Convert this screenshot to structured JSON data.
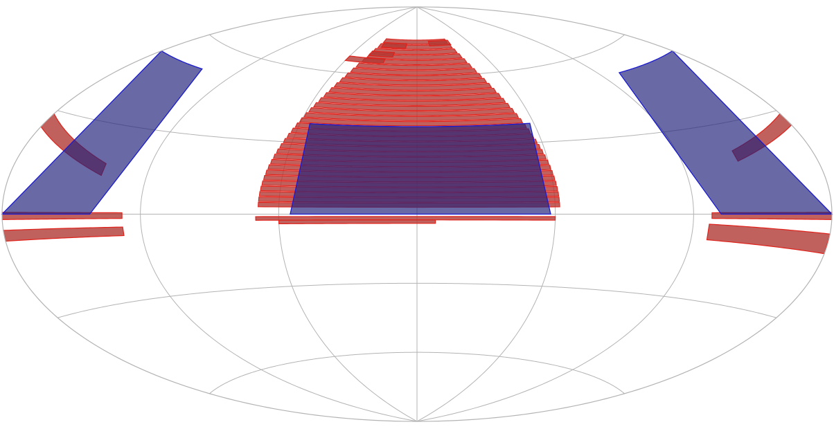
{
  "map": {
    "projection": "aitoff",
    "graticule": {
      "longitude_step_deg": 60,
      "latitude_step_deg": 30
    },
    "colors": {
      "background": "#ffffff",
      "grid": "#b3b3b3",
      "red_fill": "#b03a35",
      "red_stroke": "#e0221b",
      "blue_fill": "#22227a",
      "blue_stroke": "#1a1ad0"
    },
    "footprint_sets": [
      {
        "id": "survey-strips",
        "color": "red",
        "strips": [
          {
            "lon": [
              -180,
              -128
            ],
            "lat": [
              -7.5,
              -4.5
            ]
          },
          {
            "lon": [
              -180,
              -128
            ],
            "lat": [
              0.5,
              -1.5
            ]
          },
          {
            "lon": [
              -180,
              -140
            ],
            "lat": [
              23,
              19
            ],
            "tilt": -12
          },
          {
            "lon": [
              127,
              180
            ],
            "lat": [
              -4.5,
              -10
            ],
            "tilt": -2
          },
          {
            "lon": [
              128,
              180
            ],
            "lat": [
              0.5,
              -1.5
            ]
          },
          {
            "lon": [
              145,
              180
            ],
            "lat": [
              21.5,
              25
            ],
            "tilt": 8
          },
          {
            "lon": [
              -70,
              60
            ],
            "lat": [
              -1,
              -2.5
            ]
          },
          {
            "lon": [
              -60,
              8
            ],
            "lat": [
              -2.5,
              -4
            ]
          }
        ],
        "band_stack": {
          "lon_min": -69,
          "lon_max": 62,
          "lat_min": 3,
          "lat_max": 76,
          "count": 33
        },
        "outlier_strips": [
          {
            "lon": [
              -60,
              -28
            ],
            "lat": [
              65,
              67
            ]
          },
          {
            "lon": [
              -44,
              -22
            ],
            "lat": [
              68,
              70
            ]
          },
          {
            "lon": [
              -38,
              -12
            ],
            "lat": [
              72,
              74
            ]
          },
          {
            "lon": [
              14,
              38
            ],
            "lat": [
              73,
              75
            ]
          }
        ]
      },
      {
        "id": "survey-region",
        "color": "blue",
        "regions": [
          {
            "lon": [
              -55,
              58
            ],
            "lat": [
              0,
              38
            ]
          },
          {
            "lon": [
              -180,
              -142
            ],
            "lat": [
              0,
              52
            ]
          },
          {
            "lon": [
              132,
              180
            ],
            "lat": [
              0,
              52
            ]
          }
        ]
      }
    ]
  }
}
